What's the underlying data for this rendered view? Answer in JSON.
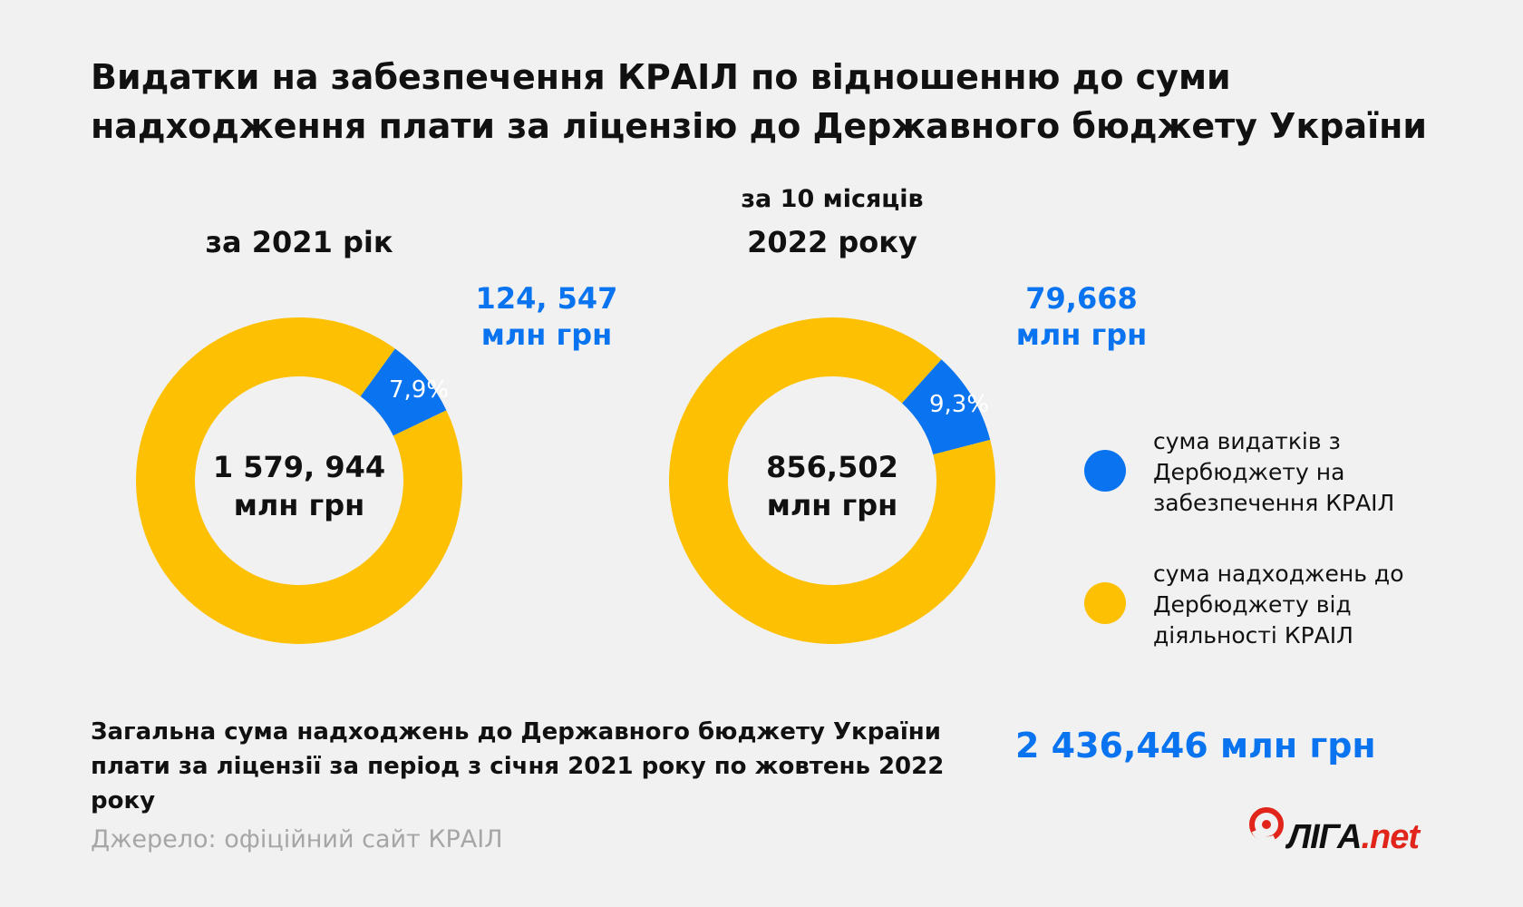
{
  "title": {
    "line1": "Видатки на забезпечення КРАІЛ по відношенню до суми",
    "line2": "надходження плати за ліцензію до Державного бюджету України"
  },
  "colors": {
    "blue": "#0a74f0",
    "yellow": "#fdc003",
    "background": "#f1f1f1"
  },
  "chart_data": [
    {
      "type": "pie",
      "subtitle": "за 2021 рік",
      "center_label": [
        "1 579, 944",
        "млн грн"
      ],
      "slices": [
        {
          "name": "сума видатків з Дербюджету на забезпечення КРАІЛ",
          "value": 7.9,
          "label": "7,9%",
          "color": "#0a74f0",
          "callout": [
            "124, 547",
            "млн грн"
          ]
        },
        {
          "name": "сума надходжень до Дербюджету від діяльності КРАІЛ",
          "value": 92.1,
          "color": "#fdc003"
        }
      ]
    },
    {
      "type": "pie",
      "subtitle_lines": [
        "за 10 місяців",
        "2022 року"
      ],
      "center_label": [
        "856,502",
        "млн грн"
      ],
      "slices": [
        {
          "name": "сума видатків з Дербюджету на забезпечення КРАІЛ",
          "value": 9.3,
          "label": "9,3%",
          "color": "#0a74f0",
          "callout": [
            "79,668",
            "млн грн"
          ]
        },
        {
          "name": "сума надходжень до Дербюджету від діяльності КРАІЛ",
          "value": 90.7,
          "color": "#fdc003"
        }
      ]
    }
  ],
  "legend": [
    {
      "lines": [
        "сума видатків з",
        "Дербюджету на",
        "забезпечення КРАІЛ"
      ],
      "color": "#0a74f0"
    },
    {
      "lines": [
        "сума надходжень до",
        "Дербюджету від",
        "діяльності КРАІЛ"
      ],
      "color": "#fdc003"
    }
  ],
  "total": {
    "line1": "Загальна сума надходжень до Державного бюджету України",
    "line2": "плати за ліцензії за період з січня 2021 року по жовтень 2022 року",
    "value": "2 436,446 млн грн"
  },
  "source": "Джерело: офіційний сайт КРАІЛ",
  "logo": {
    "brand": "ЛІГА",
    "suffix": ".net",
    "colors": {
      "red": "#e1251b",
      "dark": "#111111"
    }
  }
}
